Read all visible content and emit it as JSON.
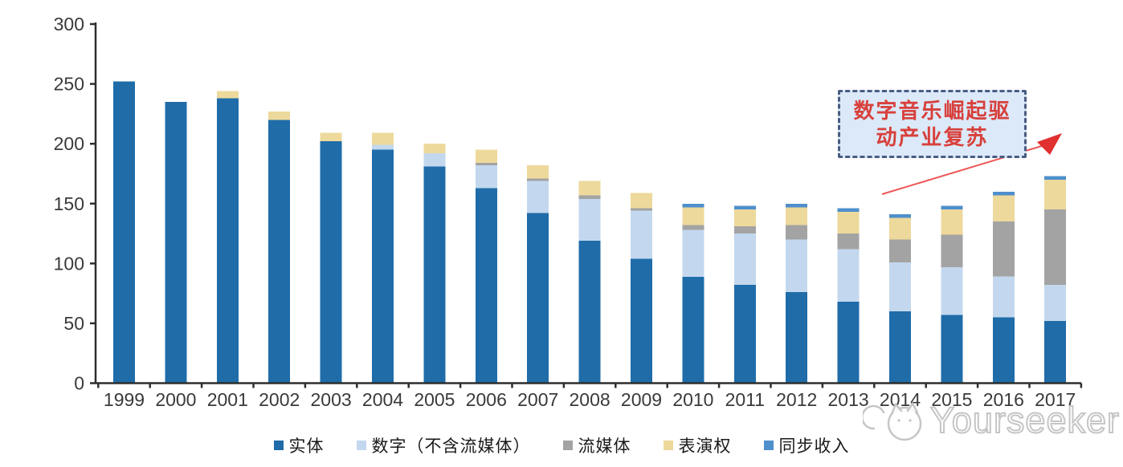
{
  "chart_data": {
    "type": "bar",
    "stacked": true,
    "title": "",
    "xlabel": "",
    "ylabel": "",
    "ylim": [
      0,
      300
    ],
    "yticks": [
      0,
      50,
      100,
      150,
      200,
      250,
      300
    ],
    "grid": false,
    "legend_position": "bottom",
    "categories": [
      "1999",
      "2000",
      "2001",
      "2002",
      "2003",
      "2004",
      "2005",
      "2006",
      "2007",
      "2008",
      "2009",
      "2010",
      "2011",
      "2012",
      "2013",
      "2014",
      "2015",
      "2016",
      "2017"
    ],
    "series": [
      {
        "name": "实体",
        "color": "#1f6ca9",
        "values": [
          252,
          235,
          238,
          220,
          202,
          195,
          181,
          163,
          142,
          119,
          104,
          89,
          82,
          76,
          68,
          60,
          57,
          55,
          52
        ]
      },
      {
        "name": "数字（不含流媒体）",
        "color": "#c3d8ee",
        "values": [
          0,
          0,
          0,
          0,
          0,
          4,
          11,
          19,
          27,
          35,
          40,
          39,
          43,
          44,
          44,
          41,
          40,
          34,
          30
        ]
      },
      {
        "name": "流媒体",
        "color": "#a3a3a3",
        "values": [
          0,
          0,
          0,
          0,
          0,
          0,
          0,
          2,
          2,
          3,
          2,
          4,
          6,
          12,
          13,
          19,
          27,
          46,
          63
        ]
      },
      {
        "name": "表演权",
        "color": "#edd99c",
        "values": [
          0,
          0,
          6,
          7,
          7,
          10,
          8,
          11,
          11,
          12,
          13,
          15,
          14,
          15,
          18,
          18,
          21,
          22,
          25
        ]
      },
      {
        "name": "同步收入",
        "color": "#4e8fcc",
        "values": [
          0,
          0,
          0,
          0,
          0,
          0,
          0,
          0,
          0,
          0,
          0,
          3,
          3,
          3,
          3,
          3,
          3,
          3,
          3
        ]
      }
    ]
  },
  "annotation": {
    "line1": "数字音乐崛起驱",
    "line2": "动产业复苏",
    "text_color": "#d8403c",
    "box_fill": "#dce9f8",
    "box_border": "#4a5d82",
    "arrow_color": "#ee5656",
    "arrowhead_color": "#e03030"
  },
  "watermark": {
    "text": "Yourseeker",
    "color": "#c6c6c6"
  },
  "axis": {
    "color": "#2e2e2e",
    "label_color": "#3a3a3a"
  }
}
